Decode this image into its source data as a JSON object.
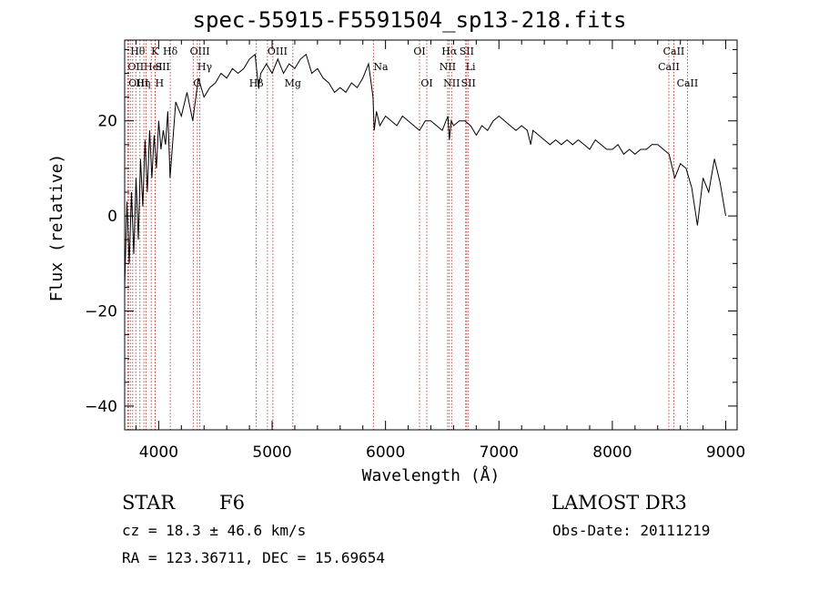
{
  "chart_data": {
    "type": "line",
    "title": "spec-55915-F5591504_sp13-218.fits",
    "xlabel": "Wavelength (Å)",
    "ylabel": "Flux (relative)",
    "xlim": [
      3700,
      9100
    ],
    "ylim": [
      -45,
      37
    ],
    "xticks": [
      4000,
      5000,
      6000,
      7000,
      8000,
      9000
    ],
    "yticks": [
      -40,
      -20,
      0,
      20
    ],
    "series": [
      {
        "name": "flux",
        "x": [
          3700,
          3720,
          3740,
          3760,
          3780,
          3800,
          3820,
          3840,
          3860,
          3880,
          3900,
          3920,
          3940,
          3960,
          3980,
          4000,
          4020,
          4040,
          4060,
          4080,
          4100,
          4150,
          4200,
          4250,
          4300,
          4350,
          4400,
          4450,
          4500,
          4550,
          4600,
          4650,
          4700,
          4750,
          4800,
          4850,
          4880,
          4900,
          4950,
          5000,
          5050,
          5100,
          5150,
          5200,
          5250,
          5300,
          5350,
          5400,
          5450,
          5500,
          5550,
          5600,
          5650,
          5700,
          5750,
          5800,
          5850,
          5890,
          5900,
          5920,
          5950,
          6000,
          6050,
          6100,
          6150,
          6200,
          6250,
          6300,
          6350,
          6400,
          6450,
          6500,
          6550,
          6563,
          6580,
          6600,
          6650,
          6700,
          6750,
          6800,
          6850,
          6900,
          6950,
          7000,
          7050,
          7100,
          7150,
          7200,
          7250,
          7280,
          7300,
          7350,
          7400,
          7450,
          7500,
          7550,
          7600,
          7650,
          7700,
          7750,
          7800,
          7850,
          7900,
          7950,
          8000,
          8050,
          8100,
          8150,
          8200,
          8250,
          8300,
          8350,
          8400,
          8450,
          8500,
          8550,
          8600,
          8650,
          8700,
          8750,
          8800,
          8850,
          8900,
          8950,
          9000
        ],
        "y": [
          -15,
          3,
          -10,
          5,
          -8,
          8,
          -5,
          12,
          2,
          16,
          5,
          18,
          8,
          17,
          10,
          20,
          14,
          18,
          15,
          22,
          8,
          24,
          21,
          26,
          20,
          29,
          25,
          27,
          28,
          30,
          29,
          31,
          30,
          31,
          33,
          34,
          27,
          30,
          32,
          30,
          33,
          30,
          32,
          31,
          33,
          34,
          30,
          31,
          29,
          28,
          26,
          27,
          26,
          28,
          27,
          29,
          32,
          25,
          18,
          22,
          19,
          21,
          20,
          19,
          21,
          20,
          19,
          18,
          20,
          20,
          19,
          18,
          21,
          16,
          20,
          19,
          20,
          20,
          19,
          17,
          19,
          18,
          20,
          21,
          20,
          19,
          18,
          19,
          18,
          15,
          18,
          17,
          16,
          15,
          16,
          15,
          16,
          15,
          16,
          15,
          14,
          16,
          15,
          14,
          14,
          15,
          13,
          14,
          13,
          14,
          14,
          15,
          15,
          14,
          13,
          8,
          11,
          10,
          6,
          -2,
          8,
          5,
          12,
          7,
          0
        ]
      }
    ],
    "lines": [
      {
        "w": 3727,
        "label": "OII",
        "row": 1,
        "anchor": "start"
      },
      {
        "w": 3734,
        "label": "OIII",
        "row": 2,
        "anchor": "start"
      },
      {
        "w": 3750,
        "label": "Hθ",
        "row": 0,
        "anchor": "start"
      },
      {
        "w": 3771,
        "label": "",
        "row": 0,
        "anchor": "start"
      },
      {
        "w": 3798,
        "label": "Hη",
        "row": 2,
        "anchor": "start"
      },
      {
        "w": 3835,
        "label": "",
        "row": 0,
        "anchor": "start"
      },
      {
        "w": 3869,
        "label": "HeI",
        "row": 1,
        "anchor": "start"
      },
      {
        "w": 3889,
        "label": "",
        "row": 0,
        "anchor": "start"
      },
      {
        "w": 3934,
        "label": "K",
        "row": 0,
        "anchor": "start"
      },
      {
        "w": 3969,
        "label": "H",
        "row": 2,
        "anchor": "start"
      },
      {
        "w": 3970,
        "label": "SII",
        "row": 1,
        "anchor": "start"
      },
      {
        "w": 4102,
        "label": "Hδ",
        "row": 0,
        "anchor": "middle"
      },
      {
        "w": 4304,
        "label": "G",
        "row": 2,
        "anchor": "start"
      },
      {
        "w": 4341,
        "label": "Hγ",
        "row": 1,
        "anchor": "start"
      },
      {
        "w": 4363,
        "label": "OIII",
        "row": 0,
        "anchor": "middle"
      },
      {
        "w": 4861,
        "label": "Hβ",
        "row": 2,
        "anchor": "middle"
      },
      {
        "w": 4959,
        "label": "OIII",
        "row": 0,
        "anchor": "start"
      },
      {
        "w": 5007,
        "label": "",
        "row": 0,
        "anchor": "start"
      },
      {
        "w": 5183,
        "label": "Mg",
        "row": 2,
        "anchor": "middle"
      },
      {
        "w": 5893,
        "label": "Na",
        "row": 1,
        "anchor": "start"
      },
      {
        "w": 6300,
        "label": "OI",
        "row": 0,
        "anchor": "middle"
      },
      {
        "w": 6364,
        "label": "OI",
        "row": 2,
        "anchor": "middle"
      },
      {
        "w": 6548,
        "label": "NII",
        "row": 1,
        "anchor": "middle"
      },
      {
        "w": 6563,
        "label": "Hα",
        "row": 0,
        "anchor": "middle"
      },
      {
        "w": 6583,
        "label": "NII",
        "row": 2,
        "anchor": "middle"
      },
      {
        "w": 6707,
        "label": "Li",
        "row": 1,
        "anchor": "start"
      },
      {
        "w": 6716,
        "label": "SII",
        "row": 0,
        "anchor": "middle"
      },
      {
        "w": 6731,
        "label": "SII",
        "row": 2,
        "anchor": "middle"
      },
      {
        "w": 8498,
        "label": "CaII",
        "row": 1,
        "anchor": "middle"
      },
      {
        "w": 8542,
        "label": "CaII",
        "row": 0,
        "anchor": "middle"
      },
      {
        "w": 8662,
        "label": "CaII",
        "row": 2,
        "anchor": "middle"
      }
    ]
  },
  "info": {
    "object_class": "STAR",
    "subclass": "F6",
    "survey": "LAMOST DR3",
    "cz": "cz = 18.3 ± 46.6 km/s",
    "obs_date": "Obs-Date: 20111219",
    "coords": "RA = 123.36711, DEC =  15.69654"
  }
}
